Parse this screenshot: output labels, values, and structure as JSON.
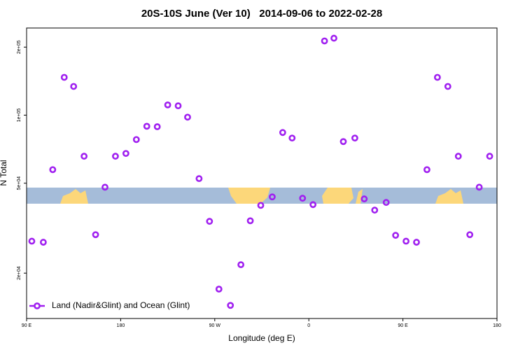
{
  "chart_data": {
    "type": "scatter",
    "title": "20S-10S June (Ver 10)   2014-09-06 to 2022-02-28",
    "x_label": "Longitude (deg E)",
    "y_label": "N Total",
    "xlim": [
      90,
      540
    ],
    "xticks": [
      {
        "value": 90,
        "label": "90 E"
      },
      180,
      {
        "value": 270,
        "label": "90 W"
      },
      {
        "value": 360,
        "label": "0"
      },
      {
        "value": 450,
        "label": "90 E"
      },
      {
        "value": 540,
        "label": "180"
      }
    ],
    "ylim": [
      12600,
      243000
    ],
    "y_log": true,
    "yticks": [
      {
        "value": 20000,
        "label": "2e+04"
      },
      {
        "value": 50000,
        "label": "5e+04"
      },
      {
        "value": 100000,
        "label": "1e+05"
      },
      {
        "value": 200000,
        "label": "2e+05"
      }
    ],
    "legend_position": "bottom-left",
    "series": [
      {
        "name": "Land (Nadir&Glint) and Ocean (Glint)",
        "color": "#a020f0",
        "x": [
          95,
          106,
          115,
          126,
          135,
          145,
          156,
          165,
          175,
          185,
          195,
          205,
          215,
          225,
          235,
          244,
          255,
          265,
          274,
          285,
          295,
          304,
          314,
          325,
          335,
          344,
          354,
          364,
          375,
          384,
          393,
          404,
          413,
          423,
          434,
          443,
          453,
          463,
          473,
          483,
          493,
          503,
          514,
          523,
          533
        ],
        "values": [
          27700,
          27400,
          57400,
          147000,
          134000,
          65800,
          29600,
          48000,
          65800,
          67700,
          78000,
          89300,
          88900,
          111000,
          110000,
          98000,
          52400,
          33900,
          17000,
          14400,
          21800,
          34100,
          39900,
          43500,
          83800,
          79200,
          42900,
          40200,
          213000,
          219000,
          76400,
          79200,
          42600,
          38000,
          41100,
          29400,
          27700,
          27400,
          57400,
          147000,
          134000,
          65800,
          29600,
          48000,
          65800
        ]
      }
    ]
  }
}
